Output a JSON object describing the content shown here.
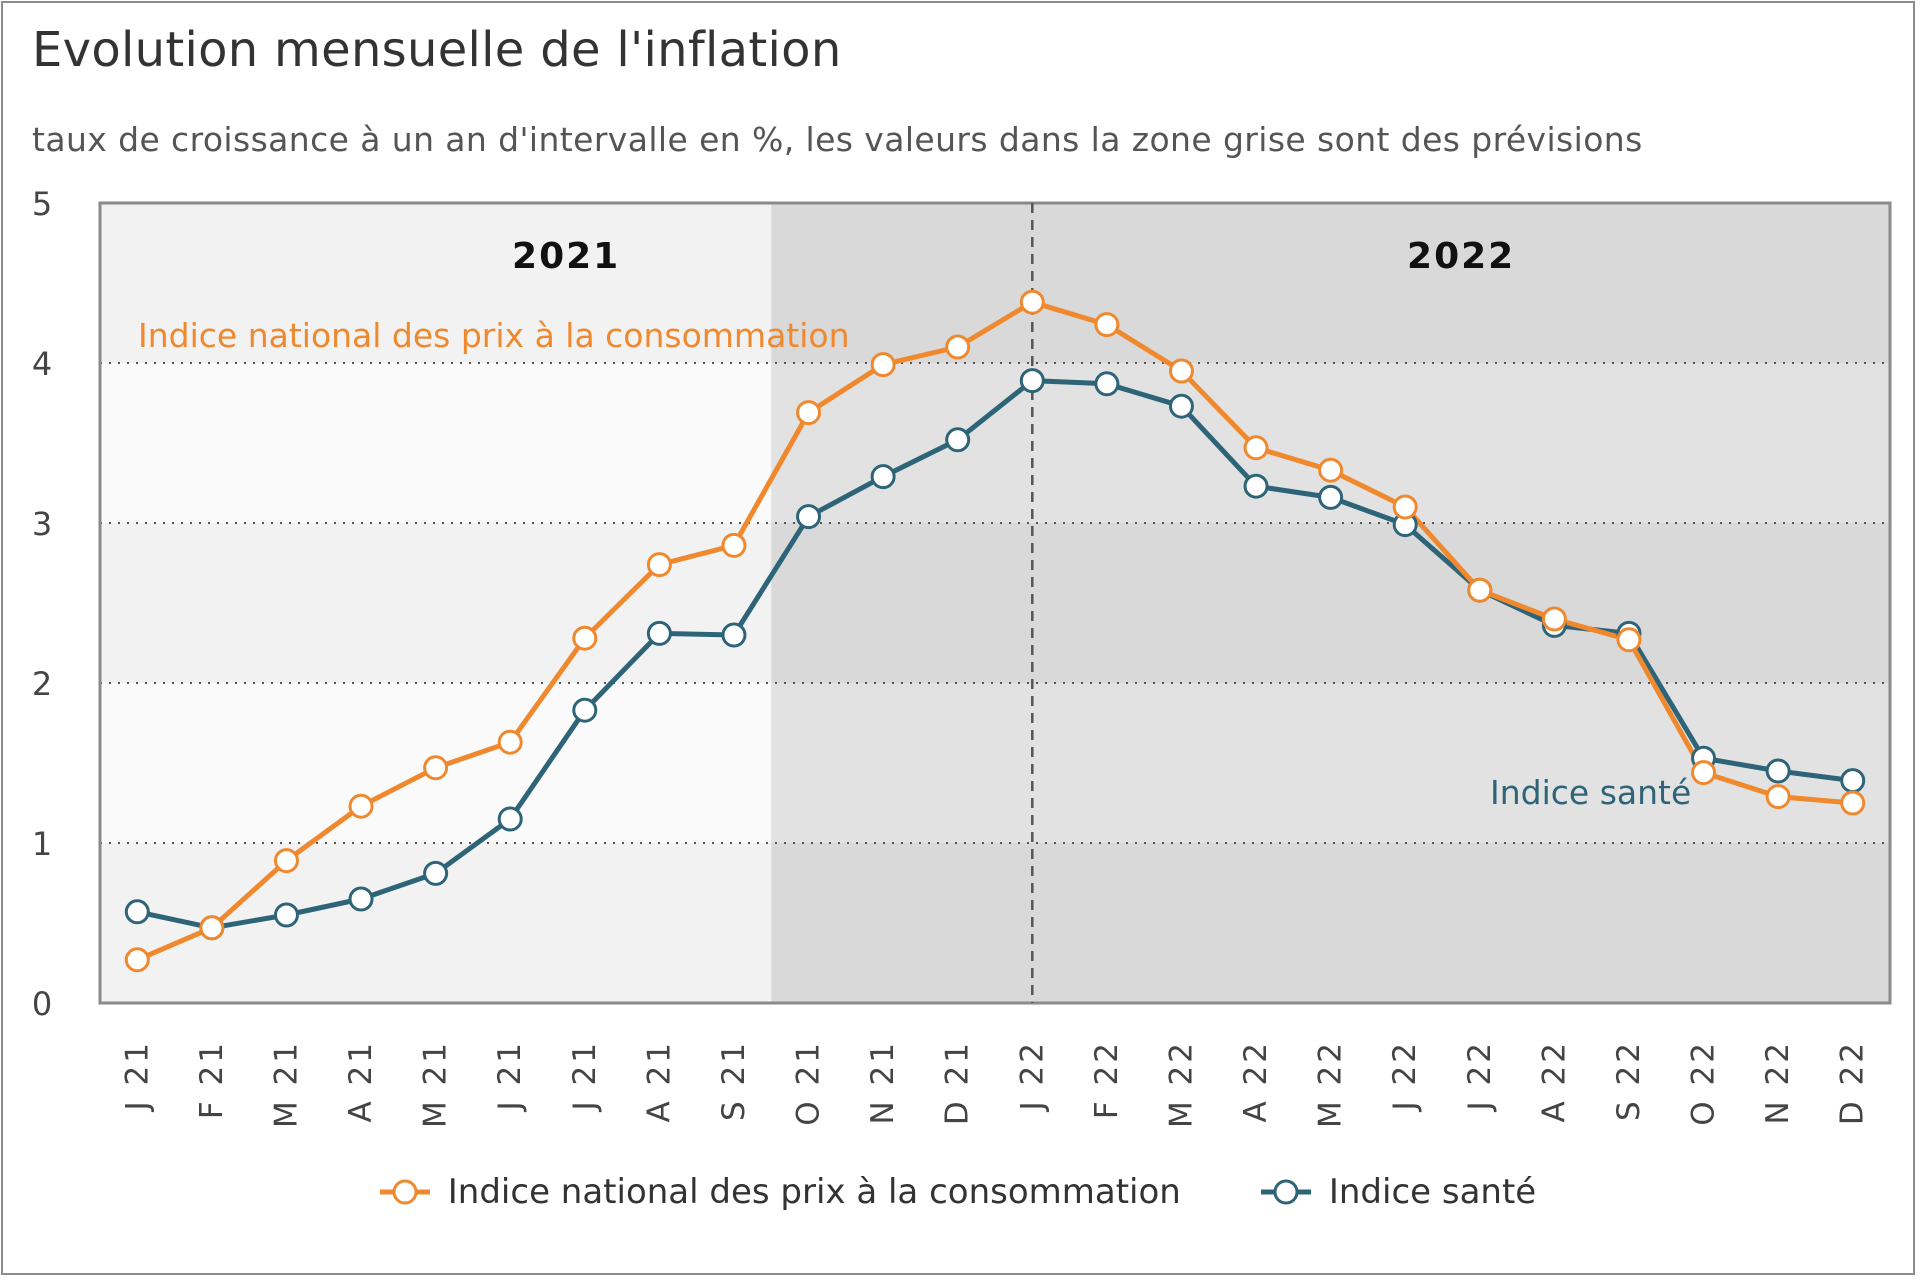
{
  "chart_data": {
    "type": "line",
    "title": "Evolution mensuelle de l'inflation",
    "subtitle": "taux de croissance à un an d'intervalle en %, les valeurs dans la zone grise sont des prévisions",
    "categories": [
      "J 21",
      "F 21",
      "M 21",
      "A 21",
      "M 21",
      "J 21",
      "J 21",
      "A 21",
      "S 21",
      "O 21",
      "N 21",
      "D 21",
      "J 22",
      "F 22",
      "M 22",
      "A 22",
      "M 22",
      "J 22",
      "J 22",
      "A 22",
      "S 22",
      "O 22",
      "N 22",
      "D 22"
    ],
    "ylim": [
      0,
      5
    ],
    "yticks": [
      "0",
      "1",
      "2",
      "3",
      "4",
      "5"
    ],
    "year_labels": [
      "2021",
      "2022"
    ],
    "forecast_start_category": "O 21",
    "divider_category": "J 22",
    "series": [
      {
        "name": "Indice national des prix à la consommation",
        "color": "#f0892e",
        "values": [
          0.27,
          0.47,
          0.89,
          1.23,
          1.47,
          1.63,
          2.28,
          2.74,
          2.86,
          3.69,
          3.99,
          4.1,
          4.38,
          4.24,
          3.95,
          3.47,
          3.33,
          3.1,
          2.58,
          2.4,
          2.27,
          1.44,
          1.29,
          1.25
        ],
        "annotation": "Indice national des prix à la consommation"
      },
      {
        "name": "Indice santé",
        "color": "#2e6478",
        "values": [
          0.57,
          0.47,
          0.55,
          0.65,
          0.81,
          1.15,
          1.83,
          2.31,
          2.3,
          3.04,
          3.29,
          3.52,
          3.89,
          3.87,
          3.73,
          3.23,
          3.16,
          2.99,
          2.58,
          2.36,
          2.31,
          1.53,
          1.45,
          1.39
        ],
        "annotation": "Indice santé"
      }
    ],
    "legend": "bottom-center"
  },
  "colors": {
    "actual_bg": "#f2f2f2",
    "actual_bg_light": "#fafafa",
    "forecast_bg": "#d9d9d9",
    "forecast_bg_light": "#e2e2e2"
  }
}
